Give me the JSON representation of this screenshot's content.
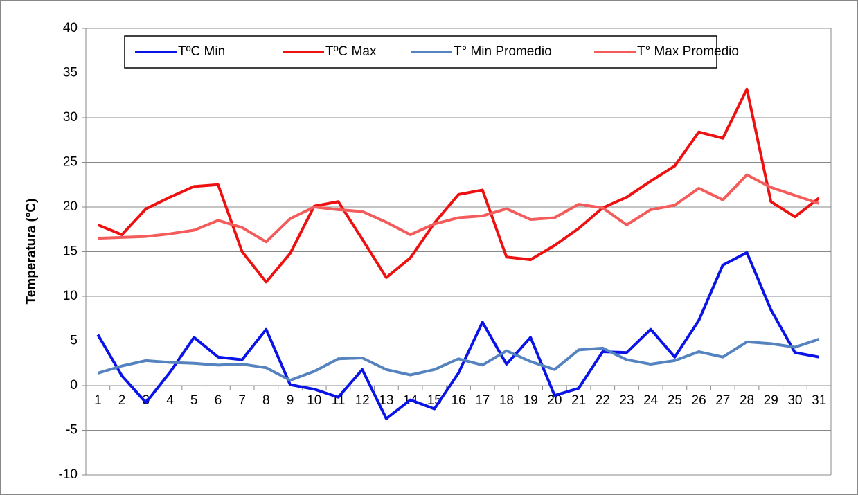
{
  "chart_data": {
    "type": "line",
    "ylabel": "Temperatura (°C)",
    "categories": [
      "1",
      "2",
      "3",
      "4",
      "5",
      "6",
      "7",
      "8",
      "9",
      "10",
      "11",
      "12",
      "13",
      "14",
      "15",
      "16",
      "17",
      "18",
      "19",
      "20",
      "21",
      "22",
      "23",
      "24",
      "25",
      "26",
      "27",
      "28",
      "29",
      "30",
      "31"
    ],
    "series": [
      {
        "name": "TºC Min",
        "color": "#0a14e6",
        "values": [
          5.7,
          1.1,
          -1.9,
          1.5,
          5.4,
          3.2,
          2.9,
          6.3,
          0.1,
          -0.4,
          -1.3,
          1.8,
          -3.7,
          -1.6,
          -2.6,
          1.4,
          7.1,
          2.4,
          5.4,
          -1.1,
          -0.3,
          3.8,
          3.7,
          6.3,
          3.2,
          7.3,
          13.5,
          14.9,
          8.5,
          3.7,
          3.2
        ]
      },
      {
        "name": "TºC Max",
        "color": "#ee1111",
        "values": [
          18.0,
          16.9,
          19.8,
          21.1,
          22.3,
          22.5,
          15.0,
          11.6,
          14.8,
          20.1,
          20.6,
          16.4,
          12.1,
          14.3,
          18.2,
          21.4,
          21.9,
          14.4,
          14.1,
          15.7,
          17.6,
          19.9,
          21.1,
          22.9,
          24.6,
          28.4,
          27.7,
          33.2,
          20.6,
          18.9,
          21.0
        ]
      },
      {
        "name": "T° Min Promedio",
        "color": "#5583c0",
        "values": [
          1.4,
          2.2,
          2.8,
          2.6,
          2.5,
          2.3,
          2.4,
          2.0,
          0.6,
          1.6,
          3.0,
          3.1,
          1.8,
          1.2,
          1.8,
          3.0,
          2.3,
          3.9,
          2.7,
          1.8,
          4.0,
          4.2,
          2.9,
          2.4,
          2.8,
          3.8,
          3.2,
          4.9,
          4.7,
          4.3,
          5.2
        ]
      },
      {
        "name": "T° Max Promedio",
        "color": "#f45b5b",
        "values": [
          16.5,
          16.6,
          16.7,
          17.0,
          17.4,
          18.5,
          17.7,
          16.1,
          18.7,
          20.0,
          19.7,
          19.5,
          18.3,
          16.9,
          18.1,
          18.8,
          19.0,
          19.8,
          18.6,
          18.8,
          20.3,
          19.9,
          18.0,
          19.7,
          20.2,
          22.1,
          20.8,
          23.6,
          22.2,
          21.3,
          20.4
        ]
      }
    ],
    "ylim": [
      -10,
      40
    ],
    "yticks": [
      -10,
      -5,
      0,
      5,
      10,
      15,
      20,
      25,
      30,
      35,
      40
    ],
    "grid": true,
    "legend": "top-left"
  }
}
